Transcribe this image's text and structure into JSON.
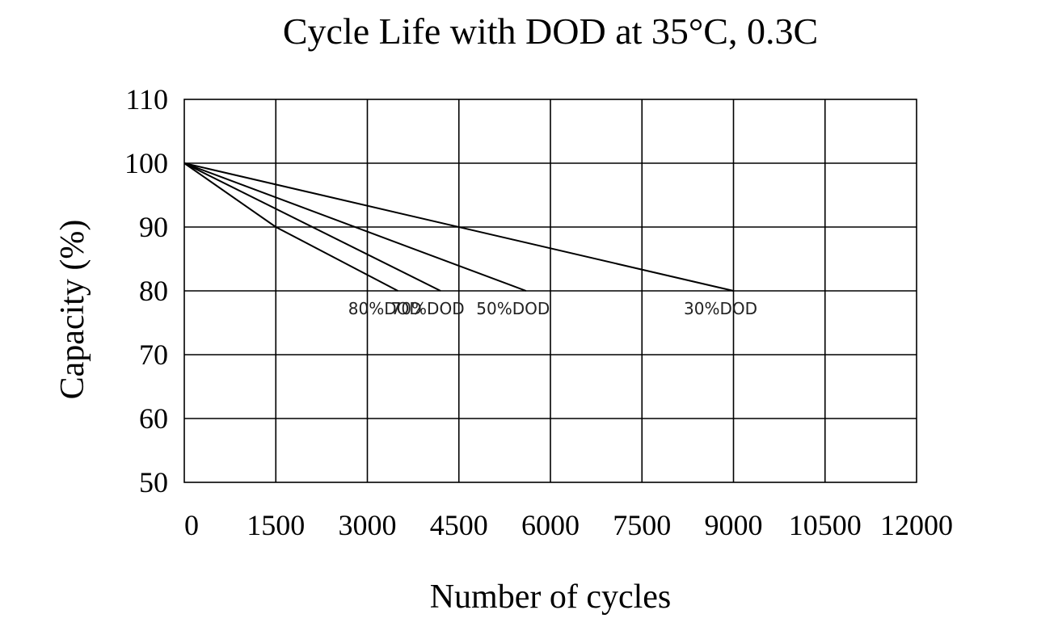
{
  "chart_data": {
    "type": "line",
    "title": "Cycle Life with DOD at 35°C, 0.3C",
    "xlabel": "Number of cycles",
    "ylabel": "Capacity (%)",
    "xlim": [
      0,
      12000
    ],
    "ylim": [
      50,
      110
    ],
    "xticks": [
      0,
      1500,
      3000,
      4500,
      6000,
      7500,
      9000,
      10500,
      12000
    ],
    "yticks": [
      50,
      60,
      70,
      80,
      90,
      100,
      110
    ],
    "grid": true,
    "legend": "inline labels below line ends",
    "series": [
      {
        "name": "80%DOD",
        "x": [
          0,
          1500,
          3500
        ],
        "y": [
          100,
          90,
          80
        ]
      },
      {
        "name": "70%DOD",
        "x": [
          0,
          4200
        ],
        "y": [
          100,
          80
        ]
      },
      {
        "name": "50%DOD",
        "x": [
          0,
          5600
        ],
        "y": [
          100,
          80
        ]
      },
      {
        "name": "30%DOD",
        "x": [
          0,
          9000
        ],
        "y": [
          100,
          80
        ]
      }
    ]
  }
}
